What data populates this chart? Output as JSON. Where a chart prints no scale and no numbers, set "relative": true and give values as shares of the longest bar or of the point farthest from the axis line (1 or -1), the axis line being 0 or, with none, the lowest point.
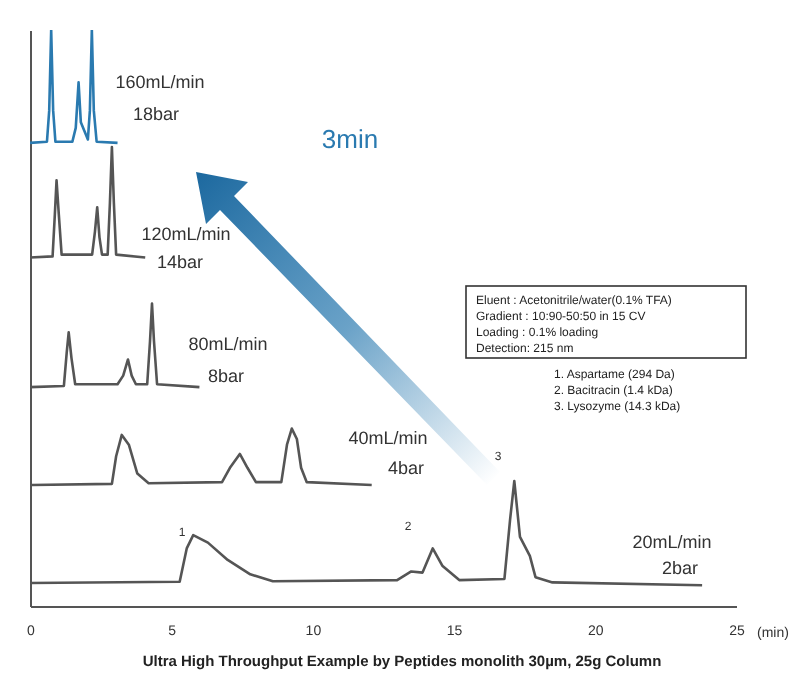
{
  "chart_data": {
    "type": "line",
    "relative": true,
    "xlabel": "(min)",
    "xlim": [
      0,
      25
    ],
    "xticks": [
      0,
      5,
      10,
      15,
      20,
      25
    ],
    "marker": "none",
    "line_style": "solid",
    "series": [
      {
        "color": "#2a7ab0",
        "x": [
          0,
          0.6,
          0.68,
          0.75,
          0.82,
          0.9,
          1.5,
          1.62,
          1.72,
          1.8,
          2.05,
          2.12,
          2.19,
          2.26,
          2.36,
          3.1
        ],
        "values": [
          0.804,
          0.806,
          0.86,
          1.0,
          0.86,
          0.806,
          0.806,
          0.83,
          0.909,
          0.84,
          0.81,
          0.86,
          1.0,
          0.86,
          0.806,
          0.804
        ]
      },
      {
        "color": "#555555",
        "x": [
          0,
          0.8,
          0.88,
          0.94,
          1.02,
          1.12,
          2.2,
          2.3,
          2.38,
          2.46,
          2.55,
          2.75,
          2.83,
          2.9,
          2.97,
          3.05,
          4.08
        ],
        "values": [
          0.605,
          0.607,
          0.68,
          0.739,
          0.68,
          0.61,
          0.61,
          0.65,
          0.692,
          0.64,
          0.61,
          0.61,
          0.7,
          0.797,
          0.7,
          0.61,
          0.605
        ]
      },
      {
        "color": "#555555",
        "x": [
          0,
          1.2,
          1.3,
          1.37,
          1.47,
          1.6,
          3.1,
          3.3,
          3.47,
          3.6,
          3.75,
          4.15,
          4.25,
          4.32,
          4.39,
          4.5,
          6.0
        ],
        "values": [
          0.38,
          0.382,
          0.44,
          0.475,
          0.43,
          0.385,
          0.385,
          0.4,
          0.428,
          0.4,
          0.385,
          0.385,
          0.46,
          0.525,
          0.46,
          0.385,
          0.38
        ]
      },
      {
        "color": "#555555",
        "x": [
          0.07,
          2.9,
          3.05,
          3.25,
          3.5,
          3.8,
          4.2,
          6.8,
          7.08,
          7.43,
          7.7,
          8.0,
          8.9,
          9.1,
          9.27,
          9.45,
          9.6,
          9.8,
          12.1
        ],
        "values": [
          0.21,
          0.212,
          0.26,
          0.297,
          0.28,
          0.23,
          0.213,
          0.215,
          0.24,
          0.264,
          0.24,
          0.215,
          0.215,
          0.28,
          0.308,
          0.29,
          0.24,
          0.215,
          0.21
        ]
      },
      {
        "color": "#555555",
        "x": [
          0,
          5.3,
          5.55,
          5.78,
          6.3,
          7.0,
          7.8,
          8.6,
          13.0,
          13.5,
          13.9,
          14.26,
          14.6,
          15.2,
          16.8,
          17.0,
          17.15,
          17.35,
          17.7,
          17.9,
          18.5,
          23.8
        ],
        "values": [
          0.04,
          0.042,
          0.1,
          0.123,
          0.11,
          0.08,
          0.055,
          0.043,
          0.045,
          0.06,
          0.058,
          0.1,
          0.07,
          0.045,
          0.047,
          0.15,
          0.217,
          0.12,
          0.087,
          0.05,
          0.041,
          0.036
        ]
      }
    ],
    "annotations": [
      "160mL/min",
      "18bar",
      "120mL/min",
      "14bar",
      "80mL/min",
      "8bar",
      "40mL/min",
      "4bar",
      "20mL/min",
      "2bar",
      "1",
      "2",
      "3",
      "3min",
      "Eluent     : Acetonitrile/water(0.1% TFA)",
      "Gradient : 10:90-50:50 in 15 CV",
      "Loading   : 0.1% loading",
      "Detection: 215 nm",
      "1. Aspartame (294 Da)",
      "2. Bacitracin (1.4 kDa)",
      "3. Lysozyme (14.3 kDa)",
      "Ultra High Throughput Example by Peptides monolith 30µm, 25g Column"
    ]
  }
}
